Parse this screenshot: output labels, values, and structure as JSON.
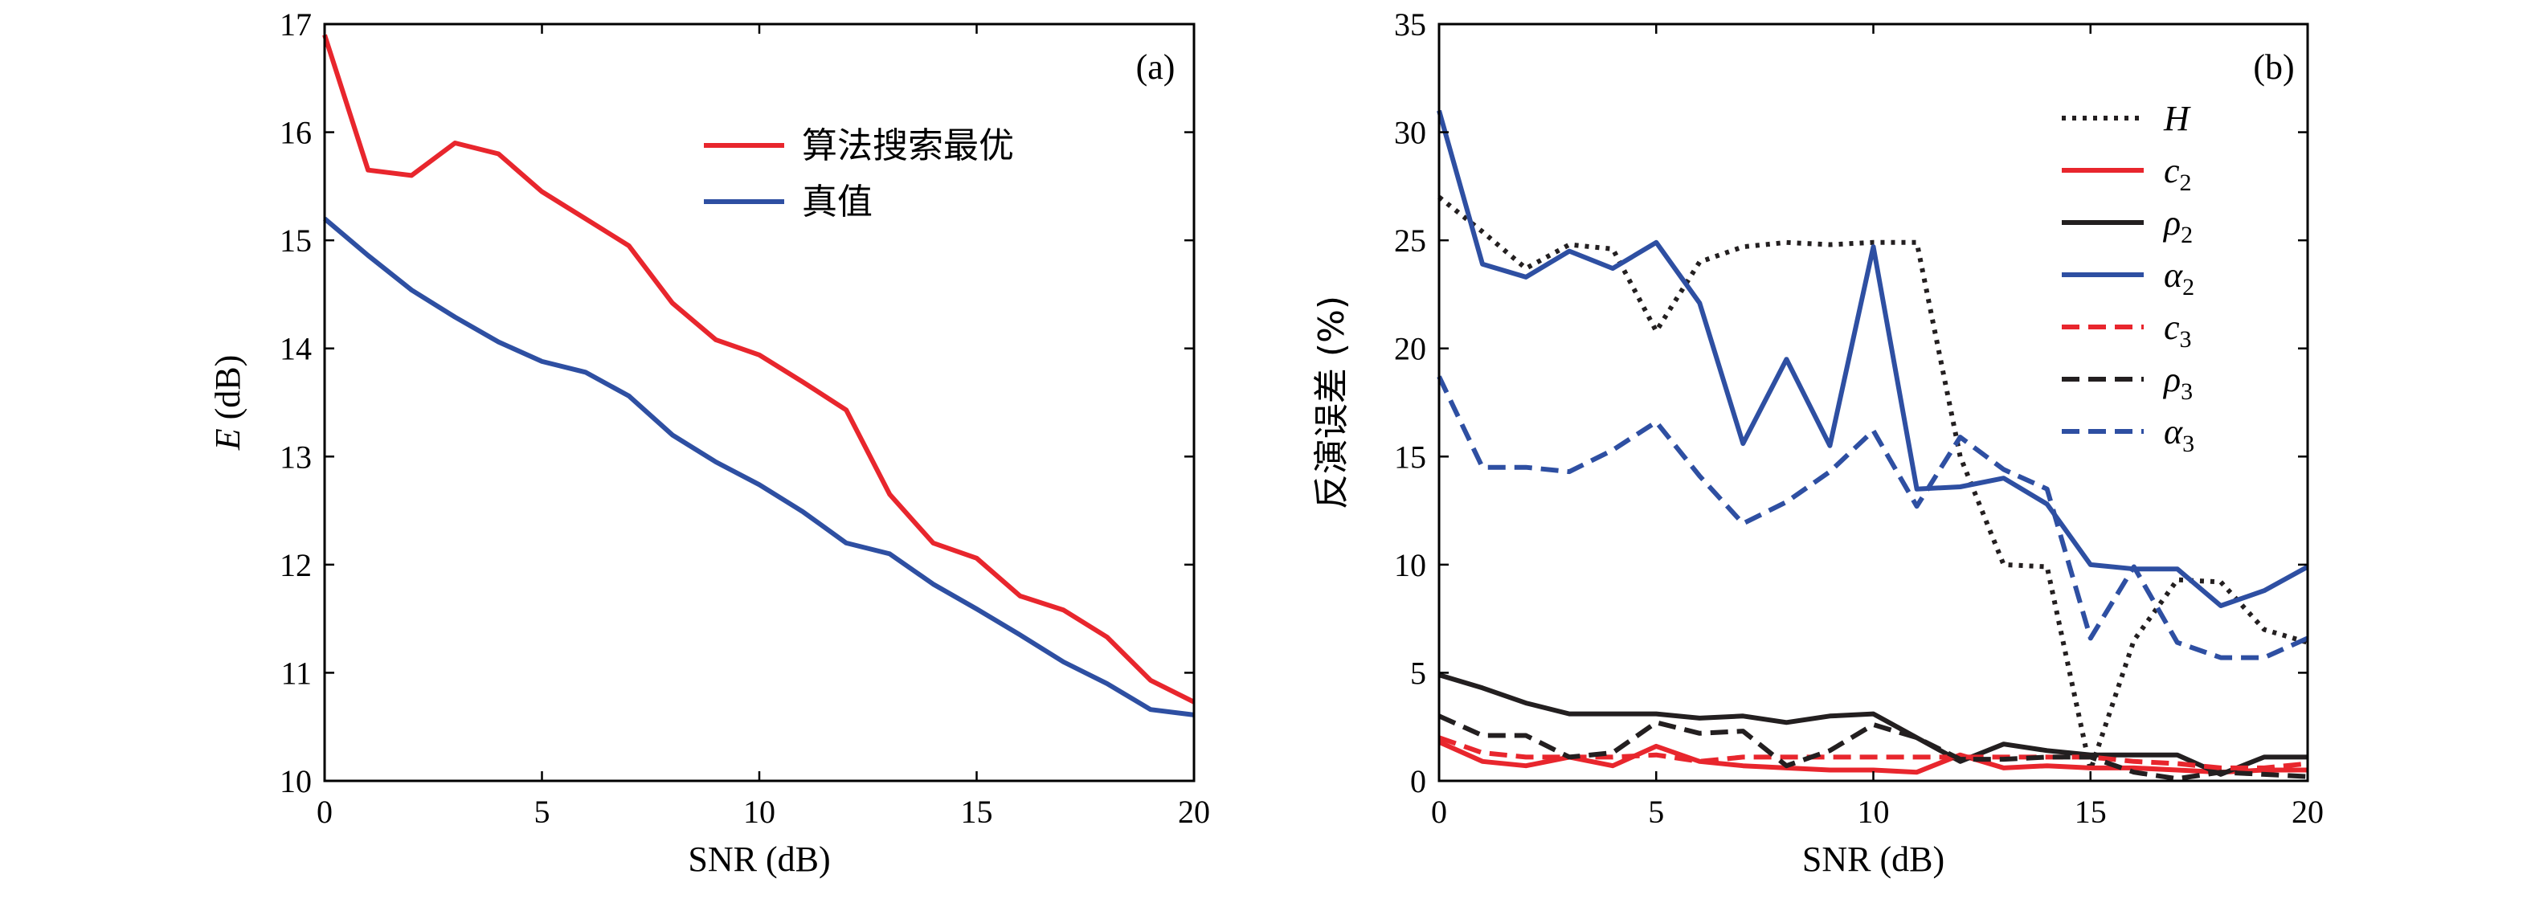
{
  "chart_data": [
    {
      "type": "line",
      "panel_tag": "(a)",
      "xlabel": "SNR (dB)",
      "ylabel_italic": "E",
      "ylabel_rest": " (dB)",
      "xlim": [
        0,
        20
      ],
      "ylim": [
        10,
        17
      ],
      "xticks": [
        0,
        5,
        10,
        15,
        20
      ],
      "yticks": [
        10,
        11,
        12,
        13,
        14,
        15,
        16,
        17
      ],
      "grid": false,
      "legend_position": "upper-middle",
      "x": [
        0,
        1,
        2,
        3,
        4,
        5,
        6,
        7,
        8,
        9,
        10,
        11,
        12,
        13,
        14,
        15,
        16,
        17,
        18,
        19,
        20
      ],
      "series": [
        {
          "name": "算法搜索最优",
          "color": "#e8262d",
          "dash": "solid",
          "values": [
            16.9,
            15.65,
            15.6,
            15.9,
            15.8,
            15.45,
            15.2,
            14.95,
            14.42,
            14.08,
            13.94,
            13.69,
            13.43,
            12.65,
            12.2,
            12.06,
            11.71,
            11.58,
            11.33,
            10.93,
            10.73
          ]
        },
        {
          "name": "真值",
          "color": "#2e4fa2",
          "dash": "solid",
          "values": [
            15.2,
            14.86,
            14.54,
            14.29,
            14.06,
            13.88,
            13.78,
            13.56,
            13.2,
            12.95,
            12.74,
            12.49,
            12.2,
            12.1,
            11.82,
            11.59,
            11.35,
            11.1,
            10.9,
            10.66,
            10.61
          ]
        }
      ]
    },
    {
      "type": "line",
      "panel_tag": "(b)",
      "xlabel": "SNR (dB)",
      "ylabel": "反演误差 (%)",
      "xlim": [
        0,
        20
      ],
      "ylim": [
        0,
        35
      ],
      "xticks": [
        0,
        5,
        10,
        15,
        20
      ],
      "yticks": [
        0,
        5,
        10,
        15,
        20,
        25,
        30,
        35
      ],
      "grid": false,
      "legend_position": "top-right",
      "x": [
        0,
        1,
        2,
        3,
        4,
        5,
        6,
        7,
        8,
        9,
        10,
        11,
        12,
        13,
        14,
        15,
        16,
        17,
        18,
        19,
        20
      ],
      "series": [
        {
          "name": "H",
          "color": "#231f20",
          "dash": "dotted",
          "values": [
            27.0,
            25.4,
            23.7,
            24.8,
            24.6,
            20.8,
            24.0,
            24.7,
            24.9,
            24.8,
            24.9,
            24.9,
            15.0,
            10.0,
            9.9,
            0.5,
            6.5,
            9.3,
            9.2,
            7.0,
            6.4
          ]
        },
        {
          "name": "c2",
          "name_base": "c",
          "name_sub": "2",
          "color": "#e8262d",
          "dash": "solid",
          "values": [
            1.8,
            0.9,
            0.7,
            1.1,
            0.7,
            1.6,
            0.9,
            0.7,
            0.6,
            0.5,
            0.5,
            0.4,
            1.2,
            0.6,
            0.7,
            0.6,
            0.6,
            0.5,
            0.4,
            0.5,
            0.5
          ]
        },
        {
          "name": "ρ2",
          "name_base": "ρ",
          "name_sub": "2",
          "color": "#231f20",
          "dash": "solid",
          "values": [
            4.9,
            4.3,
            3.6,
            3.1,
            3.1,
            3.1,
            2.9,
            3.0,
            2.7,
            3.0,
            3.1,
            2.0,
            0.9,
            1.7,
            1.4,
            1.2,
            1.2,
            1.2,
            0.3,
            1.1,
            1.1
          ]
        },
        {
          "name": "α2",
          "name_base": "α",
          "name_sub": "2",
          "color": "#2e4fa2",
          "dash": "solid",
          "values": [
            31.0,
            23.9,
            23.3,
            24.5,
            23.7,
            24.9,
            22.1,
            15.6,
            19.5,
            15.5,
            24.7,
            13.5,
            13.6,
            14.0,
            12.8,
            10.0,
            9.8,
            9.8,
            8.1,
            8.8,
            9.9
          ]
        },
        {
          "name": "c3",
          "name_base": "c",
          "name_sub": "3",
          "color": "#e8262d",
          "dash": "dashed",
          "values": [
            2.0,
            1.3,
            1.1,
            1.1,
            1.1,
            1.2,
            0.9,
            1.1,
            1.1,
            1.1,
            1.1,
            1.1,
            1.1,
            1.1,
            1.1,
            1.1,
            0.9,
            0.8,
            0.6,
            0.6,
            0.8
          ]
        },
        {
          "name": "ρ3",
          "name_base": "ρ",
          "name_sub": "3",
          "color": "#231f20",
          "dash": "dashed",
          "values": [
            3.0,
            2.1,
            2.1,
            1.1,
            1.3,
            2.7,
            2.2,
            2.3,
            0.7,
            1.4,
            2.6,
            2.0,
            1.0,
            1.0,
            1.1,
            1.1,
            0.4,
            0.1,
            0.4,
            0.3,
            0.2
          ]
        },
        {
          "name": "α3",
          "name_base": "α",
          "name_sub": "3",
          "color": "#2e4fa2",
          "dash": "dashed",
          "values": [
            18.7,
            14.5,
            14.5,
            14.3,
            15.3,
            16.6,
            14.1,
            11.9,
            12.9,
            14.3,
            16.2,
            12.7,
            15.9,
            14.4,
            13.5,
            6.6,
            9.9,
            6.4,
            5.7,
            5.7,
            6.6
          ]
        }
      ]
    }
  ]
}
